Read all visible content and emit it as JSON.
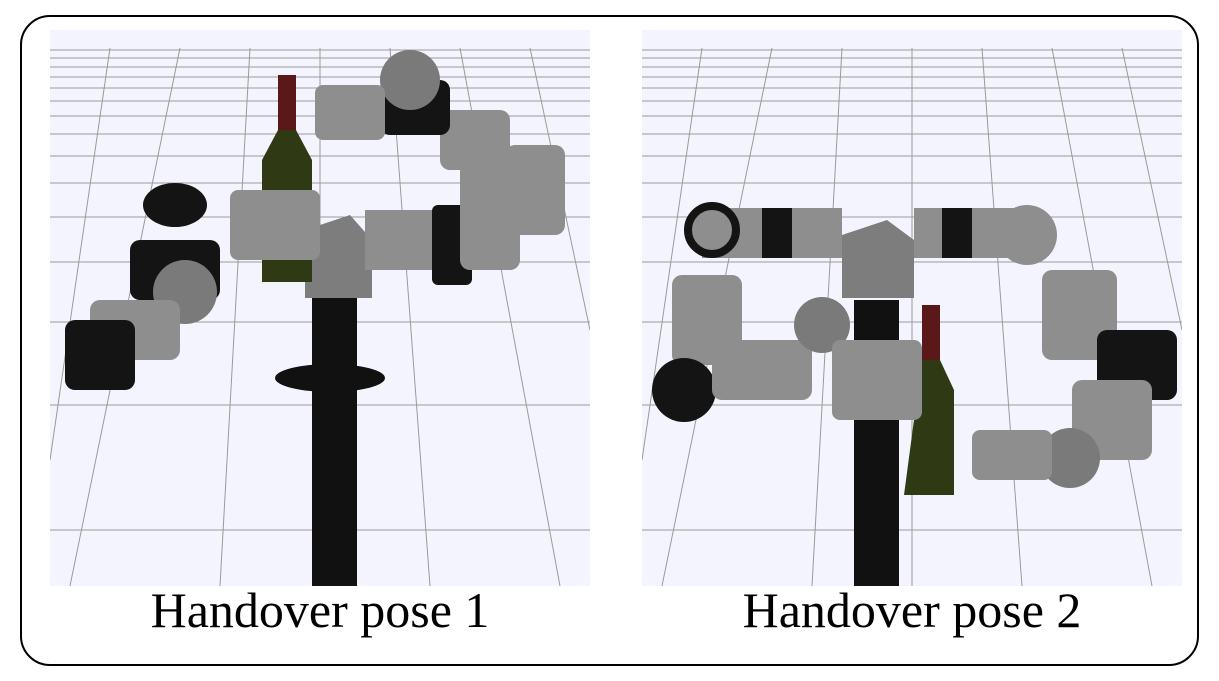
{
  "panels": [
    {
      "caption": "Handover pose 1"
    },
    {
      "caption": "Handover pose 2"
    }
  ],
  "colors": {
    "background": "#f4f4ff",
    "grid": "#9a9a9a",
    "pedestal": "#111111",
    "head": "#7d7d7d",
    "link_grey": "#8e8e8e",
    "joint_black": "#141414",
    "bottle": "#2f3a14",
    "bottle_cap": "#5a1818"
  }
}
